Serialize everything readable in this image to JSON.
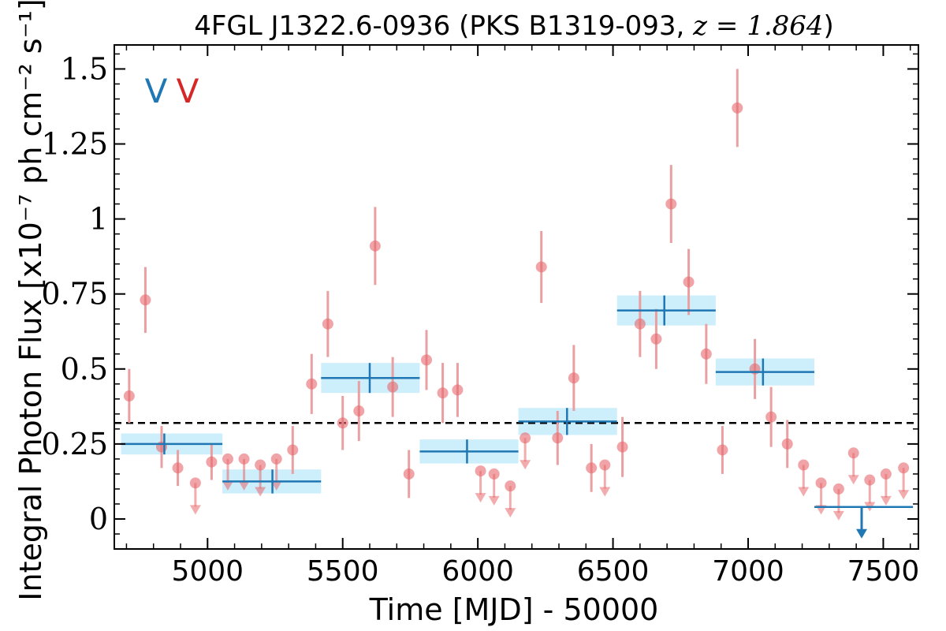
{
  "chart_data": {
    "type": "scatter",
    "title": {
      "prefix": "4FGL J1322.6-0936 (PKS B1319-093, ",
      "math": "z = 1.864",
      "suffix": ")"
    },
    "xlabel": "Time [MJD] - 50000",
    "ylabel": "Integral Photon Flux [x10⁻⁷ ph cm⁻² s⁻¹]",
    "xlim": [
      4655,
      7630
    ],
    "ylim": [
      -0.1,
      1.58
    ],
    "x_ticks": [
      5000,
      5500,
      6000,
      6500,
      7000,
      7500
    ],
    "x_tick_labels": [
      "5000",
      "5500",
      "6000",
      "6500",
      "7000",
      "7500"
    ],
    "y_ticks": [
      0,
      0.25,
      0.5,
      0.75,
      1,
      1.25,
      1.5
    ],
    "y_tick_labels": [
      "0",
      "0.25",
      "0.5",
      "0.75",
      "1",
      "1.25",
      "1.5"
    ],
    "grid": false,
    "legend_markers": [
      {
        "text": "V",
        "color": "#1f77b4"
      },
      {
        "text": "V",
        "color": "#d62728"
      }
    ],
    "average_flux_line": 0.32,
    "colors": {
      "short_points": "#e8686c",
      "short_errorbars": "#e8a0a2",
      "long_bins": "#1f77b4",
      "long_bin_band": "#cdeefb",
      "mean_line": "#000000"
    },
    "short_series": [
      {
        "x": 4710,
        "y": 0.41,
        "err": 0.09
      },
      {
        "x": 4770,
        "y": 0.73,
        "err": 0.11
      },
      {
        "x": 4830,
        "y": 0.24,
        "err": 0.07
      },
      {
        "x": 4890,
        "y": 0.17,
        "err": 0.06
      },
      {
        "x": 4955,
        "y": 0.12,
        "upper_limit": true
      },
      {
        "x": 5015,
        "y": 0.19,
        "err": 0.06
      },
      {
        "x": 5075,
        "y": 0.2,
        "upper_limit": true
      },
      {
        "x": 5135,
        "y": 0.2,
        "upper_limit": true
      },
      {
        "x": 5195,
        "y": 0.18,
        "upper_limit": true
      },
      {
        "x": 5255,
        "y": 0.2,
        "upper_limit": true
      },
      {
        "x": 5315,
        "y": 0.23,
        "err": 0.08
      },
      {
        "x": 5385,
        "y": 0.45,
        "err": 0.1
      },
      {
        "x": 5445,
        "y": 0.65,
        "err": 0.11
      },
      {
        "x": 5500,
        "y": 0.32,
        "err": 0.09
      },
      {
        "x": 5560,
        "y": 0.36,
        "err": 0.1
      },
      {
        "x": 5620,
        "y": 0.91,
        "err": 0.13
      },
      {
        "x": 5685,
        "y": 0.44,
        "err": 0.1
      },
      {
        "x": 5745,
        "y": 0.15,
        "err": 0.08
      },
      {
        "x": 5810,
        "y": 0.53,
        "err": 0.1
      },
      {
        "x": 5870,
        "y": 0.42,
        "err": 0.1
      },
      {
        "x": 5925,
        "y": 0.43,
        "err": 0.09
      },
      {
        "x": 6010,
        "y": 0.16,
        "upper_limit": true
      },
      {
        "x": 6060,
        "y": 0.15,
        "upper_limit": true
      },
      {
        "x": 6120,
        "y": 0.11,
        "upper_limit": true
      },
      {
        "x": 6175,
        "y": 0.27,
        "upper_limit": true
      },
      {
        "x": 6235,
        "y": 0.84,
        "err": 0.12
      },
      {
        "x": 6295,
        "y": 0.27,
        "err": 0.09
      },
      {
        "x": 6355,
        "y": 0.47,
        "err": 0.11
      },
      {
        "x": 6420,
        "y": 0.17,
        "err": 0.08
      },
      {
        "x": 6470,
        "y": 0.18,
        "upper_limit": true
      },
      {
        "x": 6535,
        "y": 0.24,
        "err": 0.1
      },
      {
        "x": 6600,
        "y": 0.65,
        "err": 0.11
      },
      {
        "x": 6660,
        "y": 0.6,
        "err": 0.1
      },
      {
        "x": 6715,
        "y": 1.05,
        "err": 0.13
      },
      {
        "x": 6780,
        "y": 0.79,
        "err": 0.11
      },
      {
        "x": 6845,
        "y": 0.55,
        "err": 0.1
      },
      {
        "x": 6905,
        "y": 0.23,
        "err": 0.08
      },
      {
        "x": 6960,
        "y": 1.37,
        "err": 0.13
      },
      {
        "x": 7025,
        "y": 0.5,
        "err": 0.1
      },
      {
        "x": 7085,
        "y": 0.34,
        "err": 0.1
      },
      {
        "x": 7145,
        "y": 0.25,
        "err": 0.08
      },
      {
        "x": 7205,
        "y": 0.18,
        "upper_limit": true
      },
      {
        "x": 7270,
        "y": 0.12,
        "upper_limit": true
      },
      {
        "x": 7335,
        "y": 0.1,
        "upper_limit": true
      },
      {
        "x": 7390,
        "y": 0.22,
        "upper_limit": true
      },
      {
        "x": 7450,
        "y": 0.13,
        "upper_limit": true
      },
      {
        "x": 7510,
        "y": 0.15,
        "upper_limit": true
      },
      {
        "x": 7575,
        "y": 0.17,
        "upper_limit": true
      }
    ],
    "long_bins": [
      {
        "x0": 4680,
        "x1": 5055,
        "xc": 4840,
        "y": 0.25,
        "err": 0.035
      },
      {
        "x0": 5055,
        "x1": 5420,
        "xc": 5240,
        "y": 0.125,
        "err": 0.04
      },
      {
        "x0": 5420,
        "x1": 5785,
        "xc": 5600,
        "y": 0.47,
        "err": 0.05
      },
      {
        "x0": 5785,
        "x1": 6150,
        "xc": 5960,
        "y": 0.225,
        "err": 0.04
      },
      {
        "x0": 6150,
        "x1": 6515,
        "xc": 6330,
        "y": 0.325,
        "err": 0.045
      },
      {
        "x0": 6515,
        "x1": 6880,
        "xc": 6690,
        "y": 0.695,
        "err": 0.05
      },
      {
        "x0": 6880,
        "x1": 7245,
        "xc": 7055,
        "y": 0.49,
        "err": 0.045
      },
      {
        "x0": 7245,
        "x1": 7610,
        "xc": 7420,
        "y": 0.04,
        "upper_limit": true
      }
    ]
  }
}
